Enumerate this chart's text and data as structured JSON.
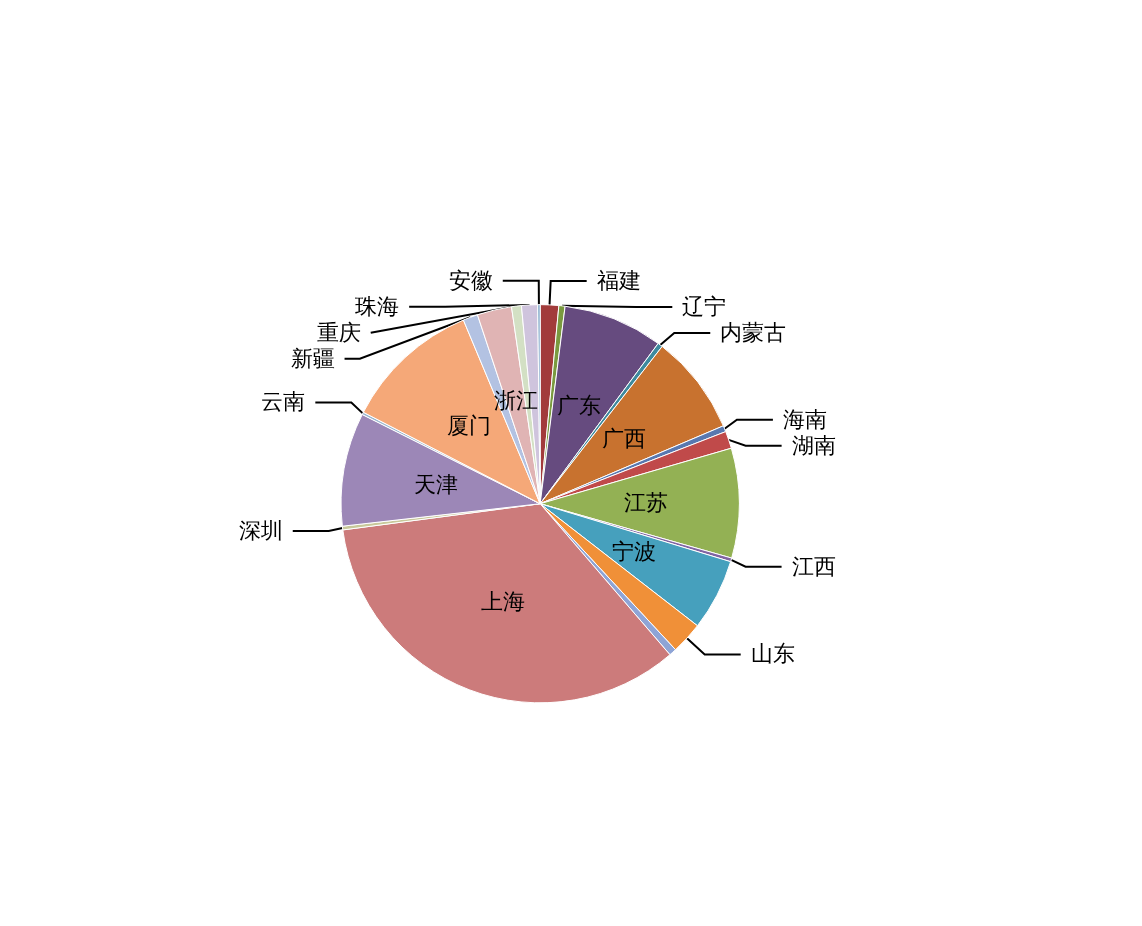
{
  "chart_data": {
    "type": "pie",
    "categories": [
      "福建",
      "辽宁",
      "广东",
      "内蒙古",
      "广西",
      "海南",
      "湖南",
      "江苏",
      "江西",
      "宁波",
      "山东",
      null,
      "上海",
      "深圳",
      "天津",
      "云南",
      "厦门",
      "新疆",
      "浙江",
      "重庆",
      "珠海",
      "安徽"
    ],
    "values": [
      1.5,
      0.5,
      8.1,
      0.4,
      8.1,
      0.5,
      1.4,
      8.9,
      0.3,
      5.8,
      2.6,
      0.6,
      34.2,
      0.3,
      9.2,
      0.2,
      11.1,
      1.2,
      2.8,
      0.8,
      1.3,
      0.2
    ],
    "colors": [
      "#a23b3b",
      "#7a9a3f",
      "#664b7f",
      "#3e8a9e",
      "#c8722f",
      "#5878b0",
      "#c04a4a",
      "#93b154",
      "#8064a2",
      "#46a0bd",
      "#f09038",
      "#8ea4d6",
      "#cc7b7b",
      "#c8c89a",
      "#9c87b7",
      "#9cb8d0",
      "#f5a878",
      "#b3c2e2",
      "#e0b4b4",
      "#d3e0c4",
      "#cfc4dd",
      "#7fa8c8"
    ],
    "legend": false
  }
}
